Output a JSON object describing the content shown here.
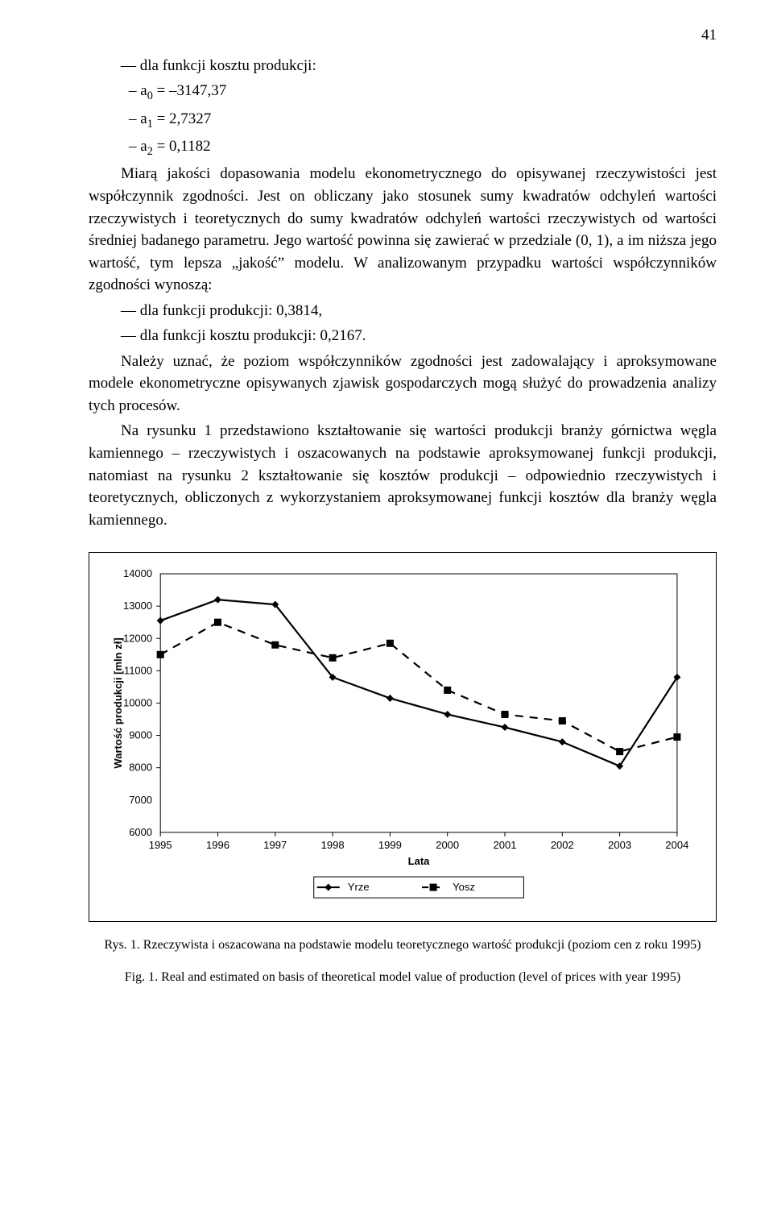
{
  "page_number": "41",
  "body": {
    "l1": "— dla funkcji kosztu produkcji:",
    "a0_pre": "–  a",
    "a0_sub": "0",
    "a0_post": " = –3147,37",
    "a1_pre": "–  a",
    "a1_sub": "1",
    "a1_post": " = 2,7327",
    "a2_pre": "–  a",
    "a2_sub": "2",
    "a2_post": " = 0,1182",
    "p1": "Miarą jakości dopasowania modelu ekonometrycznego do opisywanej rzeczywistości jest współczynnik zgodności. Jest on obliczany jako stosunek sumy kwadratów odchyleń wartości rzeczywistych i teoretycznych do sumy kwadratów odchyleń wartości rzeczywistych od wartości średniej badanego parametru. Jego wartość powinna się zawierać w przedziale (0, 1), a im niższa jego wartość, tym lepsza „jakość” modelu. W analizowanym przypadku wartości współczynników zgodności wynoszą:",
    "p1a": "— dla funkcji produkcji: 0,3814,",
    "p1b": "— dla funkcji kosztu produkcji: 0,2167.",
    "p2": "Należy uznać, że poziom współczynników zgodności jest zadowalający i aproksymowane modele ekonometryczne opisywanych zjawisk gospodarczych mogą służyć do prowadzenia analizy tych procesów.",
    "p3": "Na rysunku 1 przedstawiono kształtowanie się wartości produkcji branży górnictwa węgla kamiennego – rzeczywistych i oszacowanych na podstawie aproksymowanej funkcji produkcji, natomiast na rysunku 2 kształtowanie się kosztów produkcji – odpowiednio rzeczywistych i teoretycznych, obliczonych z wykorzystaniem aproksymowanej funkcji kosztów dla branży węgla kamiennego."
  },
  "chart": {
    "type": "line",
    "y_label": "Wartość produkcji  [mln zł]",
    "x_label": "Lata",
    "ymin": 6000,
    "ymax": 14000,
    "ytick_step": 1000,
    "years": [
      1995,
      1996,
      1997,
      1998,
      1999,
      2000,
      2001,
      2002,
      2003,
      2004
    ],
    "series": [
      {
        "name": "Yrze",
        "label": "Yrze",
        "marker": "diamond",
        "dash": "solid",
        "color": "#000000",
        "values": [
          12550,
          13200,
          13050,
          10800,
          10150,
          9650,
          9250,
          8800,
          8050,
          10800
        ]
      },
      {
        "name": "Yosz",
        "label": "Yosz",
        "marker": "square",
        "dash": "dashed",
        "color": "#000000",
        "values": [
          11500,
          12500,
          11800,
          11400,
          11850,
          10400,
          9650,
          9450,
          8500,
          8950
        ]
      }
    ],
    "background": "#ffffff",
    "grid_color": "#000000",
    "line_width": 2.2,
    "marker_size": 9,
    "font_family": "Arial",
    "tick_fontsize": 13,
    "label_fontsize": 13
  },
  "captions": {
    "rys_pl": "Rys. 1. Rzeczywista i oszacowana na podstawie modelu teoretycznego wartość produkcji (poziom cen z roku 1995)",
    "fig_en": "Fig. 1. Real and estimated on basis of theoretical model value of production (level of prices with year 1995)"
  }
}
